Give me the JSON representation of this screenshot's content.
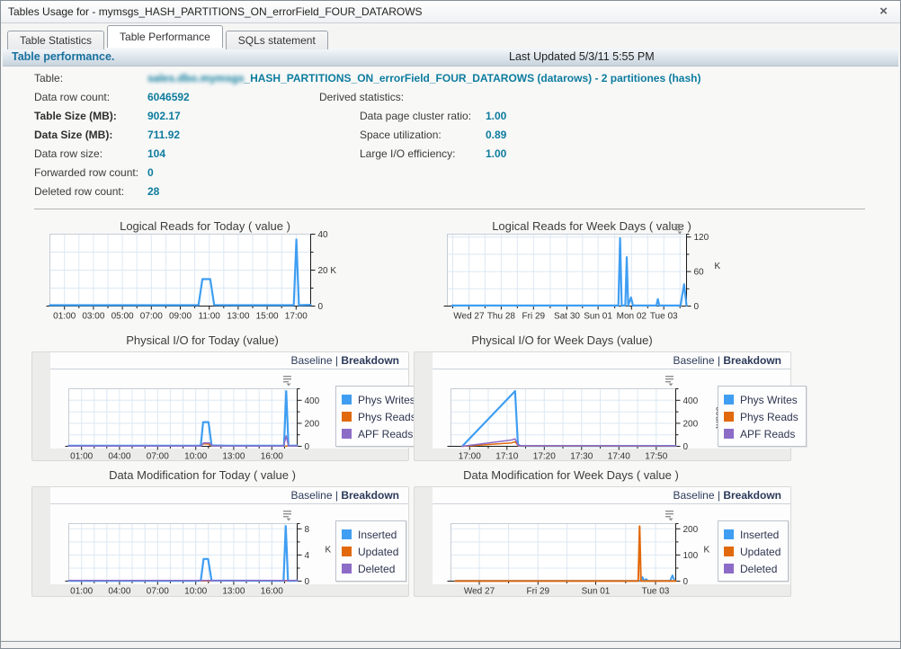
{
  "window": {
    "title": "Tables Usage for - mymsgs_HASH_PARTITIONS_ON_errorField_FOUR_DATAROWS",
    "close_label": "×"
  },
  "tabs": [
    {
      "label": "Table Statistics",
      "active": false
    },
    {
      "label": "Table Performance",
      "active": true
    },
    {
      "label": "SQLs statement",
      "active": false
    }
  ],
  "header": {
    "title": "Table performance.",
    "last_updated": "Last Updated 5/3/11 5:55 PM"
  },
  "stats": {
    "table_label": "Table:",
    "table_value_redacted": "sales.dbo.mymsgs",
    "table_value_rest": "_HASH_PARTITIONS_ON_errorField_FOUR_DATAROWS (datarows) - 2 partitiones (hash)",
    "rows": [
      {
        "label": "Data row count:",
        "value": "6046592",
        "bold": false
      },
      {
        "label": "Table Size (MB):",
        "value": "902.17",
        "bold": true
      },
      {
        "label": "Data Size (MB):",
        "value": "711.92",
        "bold": true
      },
      {
        "label": "Data row size:",
        "value": "104",
        "bold": false
      },
      {
        "label": "Forwarded row count:",
        "value": "0",
        "bold": false
      },
      {
        "label": "Deleted row count:",
        "value": "28",
        "bold": false
      }
    ],
    "derived_title": "Derived statistics:",
    "derived_rows": [
      {
        "label": "Data page cluster ratio:",
        "value": "1.00"
      },
      {
        "label": "Space utilization:",
        "value": "0.89"
      },
      {
        "label": "Large I/O efficiency:",
        "value": "1.00"
      }
    ]
  },
  "links": {
    "baseline": "Baseline",
    "separator": "|",
    "breakdown": "Breakdown"
  },
  "colors": {
    "accent_teal": "#0d7c9e",
    "series_blue": "#3f9ef2",
    "series_orange": "#e2690b",
    "series_purple": "#8d6cc8",
    "link_navy": "#2c3a5a"
  },
  "chart_data": [
    {
      "id": "logical-reads-today",
      "type": "line",
      "title": "Logical Reads for Today ( value )",
      "xlabel": "",
      "ylabel": "K",
      "ylim": [
        0,
        40
      ],
      "grid": true,
      "legend_position": "none",
      "x_ticks": [
        {
          "label": "01:00",
          "f": 0.056
        },
        {
          "label": "03:00",
          "f": 0.167
        },
        {
          "label": "05:00",
          "f": 0.278
        },
        {
          "label": "07:00",
          "f": 0.389
        },
        {
          "label": "09:00",
          "f": 0.5
        },
        {
          "label": "11:00",
          "f": 0.611
        },
        {
          "label": "13:00",
          "f": 0.722
        },
        {
          "label": "15:00",
          "f": 0.833
        },
        {
          "label": "17:00",
          "f": 0.944
        }
      ],
      "x_minor_per_gap": 1,
      "y_top": 40,
      "y_ticks": [
        {
          "label": "0",
          "v": 0
        },
        {
          "label": "20 K",
          "v": 20
        },
        {
          "label": "40",
          "v": 40
        }
      ],
      "y_unit": null,
      "series": [
        {
          "name": "value",
          "color_key": "series_blue",
          "width": 2.2,
          "points": [
            [
              0,
              0.5
            ],
            [
              0.55,
              0.5
            ],
            [
              0.57,
              0.6
            ],
            [
              0.585,
              15
            ],
            [
              0.615,
              15
            ],
            [
              0.63,
              0.6
            ],
            [
              0.7,
              0.5
            ],
            [
              0.935,
              0.5
            ],
            [
              0.945,
              37
            ],
            [
              0.955,
              0.5
            ],
            [
              1,
              0.7
            ]
          ]
        }
      ]
    },
    {
      "id": "logical-reads-week",
      "type": "line",
      "title": "Logical Reads for Week Days ( value )",
      "xlabel": "",
      "ylabel": "K",
      "ylim": [
        0,
        125
      ],
      "grid": true,
      "legend_position": "none",
      "x_ticks": [
        {
          "label": "Wed 27",
          "f": 0.09
        },
        {
          "label": "Thu 28",
          "f": 0.225
        },
        {
          "label": "Fri 29",
          "f": 0.36
        },
        {
          "label": "Sat 30",
          "f": 0.5
        },
        {
          "label": "Sun 01",
          "f": 0.63
        },
        {
          "label": "Mon 02",
          "f": 0.77
        },
        {
          "label": "Tue 03",
          "f": 0.905
        }
      ],
      "x_minor_per_gap": 1,
      "y_top": 125,
      "y_ticks": [
        {
          "label": "0",
          "v": 0
        },
        {
          "label": "60",
          "v": 60
        },
        {
          "label": "120",
          "v": 120
        }
      ],
      "y_unit": {
        "text": "K",
        "rotated": false
      },
      "series": [
        {
          "name": "value",
          "color_key": "series_blue",
          "width": 2.2,
          "points": [
            [
              0.02,
              1
            ],
            [
              0.7,
              1
            ],
            [
              0.715,
              1
            ],
            [
              0.722,
              118
            ],
            [
              0.729,
              1
            ],
            [
              0.744,
              1
            ],
            [
              0.75,
              85
            ],
            [
              0.756,
              1
            ],
            [
              0.768,
              15
            ],
            [
              0.776,
              1
            ],
            [
              0.8,
              1
            ],
            [
              0.874,
              1
            ],
            [
              0.88,
              12
            ],
            [
              0.886,
              1
            ],
            [
              0.975,
              1
            ],
            [
              0.99,
              38
            ],
            [
              1,
              1
            ]
          ]
        }
      ]
    },
    {
      "id": "phys-io-today",
      "type": "line",
      "title": "Physical I/O for Today (value)",
      "xlabel": "",
      "ylabel": "count",
      "ylim": [
        0,
        500
      ],
      "grid": true,
      "legend_position": "right",
      "x_ticks": [
        {
          "label": "01:00",
          "f": 0.056
        },
        {
          "label": "04:00",
          "f": 0.222
        },
        {
          "label": "07:00",
          "f": 0.389
        },
        {
          "label": "10:00",
          "f": 0.556
        },
        {
          "label": "13:00",
          "f": 0.722
        },
        {
          "label": "16:00",
          "f": 0.889
        }
      ],
      "x_minor_per_gap": 2,
      "y_top": 500,
      "y_ticks": [
        {
          "label": "0",
          "v": 0
        },
        {
          "label": "200",
          "v": 200
        },
        {
          "label": "400",
          "v": 400
        }
      ],
      "y_unit": {
        "text": "count",
        "rotated": true
      },
      "legend": [
        {
          "label": "Phys Writes",
          "color_key": "series_blue"
        },
        {
          "label": "Phys Reads",
          "color_key": "series_orange"
        },
        {
          "label": "APF Reads",
          "color_key": "series_purple"
        }
      ],
      "series": [
        {
          "name": "Phys Reads",
          "color_key": "series_orange",
          "width": 1.5,
          "points": [
            [
              0,
              2
            ],
            [
              0.57,
              2
            ],
            [
              0.585,
              20
            ],
            [
              0.61,
              20
            ],
            [
              0.625,
              2
            ],
            [
              1,
              2
            ]
          ]
        },
        {
          "name": "Phys Writes",
          "color_key": "series_blue",
          "width": 2.2,
          "points": [
            [
              0,
              5
            ],
            [
              0.565,
              5
            ],
            [
              0.578,
              8
            ],
            [
              0.588,
              210
            ],
            [
              0.612,
              210
            ],
            [
              0.625,
              8
            ],
            [
              0.7,
              5
            ],
            [
              0.942,
              5
            ],
            [
              0.952,
              480
            ],
            [
              0.962,
              5
            ],
            [
              1,
              6
            ]
          ]
        },
        {
          "name": "APF Reads",
          "color_key": "series_purple",
          "width": 1.5,
          "points": [
            [
              0,
              3
            ],
            [
              0.58,
              3
            ],
            [
              0.59,
              30
            ],
            [
              0.615,
              30
            ],
            [
              0.63,
              3
            ],
            [
              0.94,
              3
            ],
            [
              0.952,
              90
            ],
            [
              0.962,
              3
            ],
            [
              1,
              3
            ]
          ]
        }
      ]
    },
    {
      "id": "phys-io-week",
      "type": "line",
      "title": "Physical I/O for Week Days (value)",
      "xlabel": "",
      "ylabel": "count",
      "ylim": [
        0,
        500
      ],
      "grid": true,
      "legend_position": "right",
      "x_ticks": [
        {
          "label": "17:00",
          "f": 0.083
        },
        {
          "label": "17:10",
          "f": 0.249
        },
        {
          "label": "17:20",
          "f": 0.415
        },
        {
          "label": "17:30",
          "f": 0.581
        },
        {
          "label": "17:40",
          "f": 0.747
        },
        {
          "label": "17:50",
          "f": 0.913
        }
      ],
      "x_minor_per_gap": 1,
      "y_top": 500,
      "y_ticks": [
        {
          "label": "0",
          "v": 0
        },
        {
          "label": "200",
          "v": 200
        },
        {
          "label": "400",
          "v": 400
        }
      ],
      "y_unit": {
        "text": "count",
        "rotated": true
      },
      "legend": [
        {
          "label": "Phys Writes",
          "color_key": "series_blue"
        },
        {
          "label": "Phys Reads",
          "color_key": "series_orange"
        },
        {
          "label": "APF Reads",
          "color_key": "series_purple"
        }
      ],
      "series": [
        {
          "name": "Phys Writes",
          "color_key": "series_blue",
          "width": 2.2,
          "points": [
            [
              0.05,
              0
            ],
            [
              0.285,
              480
            ],
            [
              0.298,
              15
            ],
            [
              0.31,
              3
            ],
            [
              1,
              3
            ]
          ]
        },
        {
          "name": "Phys Reads",
          "color_key": "series_orange",
          "width": 1.5,
          "points": [
            [
              0.05,
              0
            ],
            [
              0.27,
              30
            ],
            [
              0.285,
              40
            ],
            [
              0.3,
              3
            ],
            [
              1,
              2
            ]
          ]
        },
        {
          "name": "APF Reads",
          "color_key": "series_purple",
          "width": 1.5,
          "points": [
            [
              0.05,
              0
            ],
            [
              0.27,
              55
            ],
            [
              0.285,
              65
            ],
            [
              0.3,
              5
            ],
            [
              1,
              4
            ]
          ]
        }
      ]
    },
    {
      "id": "data-mod-today",
      "type": "line",
      "title": "Data Modification for Today ( value )",
      "xlabel": "",
      "ylabel": "K",
      "ylim": [
        0,
        8.8
      ],
      "grid": true,
      "legend_position": "right",
      "x_ticks": [
        {
          "label": "01:00",
          "f": 0.056
        },
        {
          "label": "04:00",
          "f": 0.222
        },
        {
          "label": "07:00",
          "f": 0.389
        },
        {
          "label": "10:00",
          "f": 0.556
        },
        {
          "label": "13:00",
          "f": 0.722
        },
        {
          "label": "16:00",
          "f": 0.889
        }
      ],
      "x_minor_per_gap": 2,
      "y_top": 8.8,
      "y_ticks": [
        {
          "label": "0",
          "v": 0
        },
        {
          "label": "4",
          "v": 4
        },
        {
          "label": "8",
          "v": 8
        }
      ],
      "y_unit": {
        "text": "K",
        "rotated": false
      },
      "legend": [
        {
          "label": "Inserted",
          "color_key": "series_blue"
        },
        {
          "label": "Updated",
          "color_key": "series_orange"
        },
        {
          "label": "Deleted",
          "color_key": "series_purple"
        }
      ],
      "series": [
        {
          "name": "Updated",
          "color_key": "series_orange",
          "width": 1.5,
          "points": [
            [
              0,
              0.03
            ],
            [
              1,
              0.03
            ]
          ]
        },
        {
          "name": "Inserted",
          "color_key": "series_blue",
          "width": 2.2,
          "points": [
            [
              0,
              0.05
            ],
            [
              0.565,
              0.05
            ],
            [
              0.578,
              0.08
            ],
            [
              0.59,
              3.4
            ],
            [
              0.61,
              3.4
            ],
            [
              0.625,
              0.08
            ],
            [
              0.94,
              0.05
            ],
            [
              0.95,
              8.4
            ],
            [
              0.96,
              0.05
            ],
            [
              1,
              0.07
            ]
          ]
        },
        {
          "name": "Deleted",
          "color_key": "series_purple",
          "width": 1.5,
          "points": [
            [
              0,
              0.09
            ],
            [
              1,
              0.09
            ]
          ]
        }
      ]
    },
    {
      "id": "data-mod-week",
      "type": "line",
      "title": "Data Modification for Week Days ( value )",
      "xlabel": "",
      "ylabel": "K",
      "ylim": [
        0,
        220
      ],
      "grid": true,
      "legend_position": "right",
      "x_ticks": [
        {
          "label": "Wed 27",
          "f": 0.126
        },
        {
          "label": "Fri 29",
          "f": 0.387
        },
        {
          "label": "Sun 01",
          "f": 0.644
        },
        {
          "label": "Tue 03",
          "f": 0.91
        }
      ],
      "x_minor_per_gap": 1,
      "y_top": 220,
      "y_ticks": [
        {
          "label": "0",
          "v": 0
        },
        {
          "label": "100",
          "v": 100
        },
        {
          "label": "200",
          "v": 200
        }
      ],
      "y_unit": {
        "text": "K",
        "rotated": false
      },
      "legend": [
        {
          "label": "Inserted",
          "color_key": "series_blue"
        },
        {
          "label": "Updated",
          "color_key": "series_orange"
        },
        {
          "label": "Deleted",
          "color_key": "series_purple"
        }
      ],
      "series": [
        {
          "name": "Deleted",
          "color_key": "series_purple",
          "width": 1.5,
          "points": [
            [
              0.02,
              1.5
            ],
            [
              1,
              1.5
            ]
          ]
        },
        {
          "name": "Inserted",
          "color_key": "series_blue",
          "width": 2,
          "points": [
            [
              0.02,
              1
            ],
            [
              0.845,
              1
            ],
            [
              0.852,
              15
            ],
            [
              0.859,
              1
            ],
            [
              0.868,
              8
            ],
            [
              0.876,
              1
            ],
            [
              0.94,
              1
            ],
            [
              0.975,
              1
            ],
            [
              0.985,
              22
            ],
            [
              0.995,
              1
            ]
          ]
        },
        {
          "name": "Updated",
          "color_key": "series_orange",
          "width": 2,
          "points": [
            [
              0.02,
              0.5
            ],
            [
              0.833,
              0.5
            ],
            [
              0.839,
              210
            ],
            [
              0.845,
              0.5
            ],
            [
              1,
              0.5
            ]
          ]
        }
      ]
    }
  ]
}
